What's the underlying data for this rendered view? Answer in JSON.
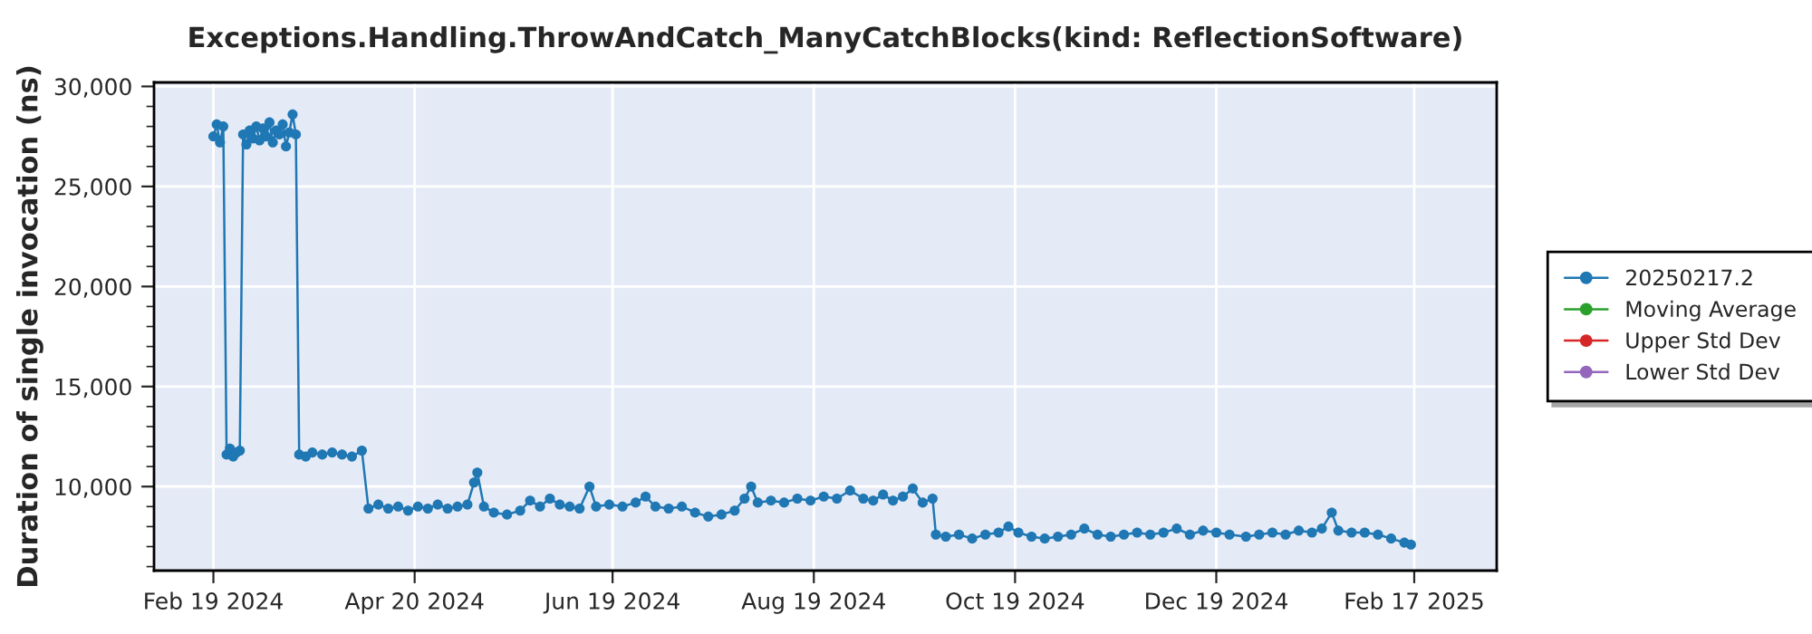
{
  "chart_data": {
    "type": "line",
    "title": "Exceptions.Handling.ThrowAndCatch_ManyCatchBlocks(kind: ReflectionSoftware)",
    "ylabel": "Duration of single invocation (ns)",
    "x": [
      "2024-02-19",
      "2024-02-20",
      "2024-02-21",
      "2024-02-22",
      "2024-02-23",
      "2024-02-24",
      "2024-02-25",
      "2024-02-26",
      "2024-02-27",
      "2024-02-28",
      "2024-02-29",
      "2024-03-01",
      "2024-03-02",
      "2024-03-03",
      "2024-03-04",
      "2024-03-05",
      "2024-03-06",
      "2024-03-07",
      "2024-03-08",
      "2024-03-09",
      "2024-03-10",
      "2024-03-11",
      "2024-03-12",
      "2024-03-13",
      "2024-03-14",
      "2024-03-15",
      "2024-03-16",
      "2024-03-18",
      "2024-03-20",
      "2024-03-23",
      "2024-03-26",
      "2024-03-29",
      "2024-04-01",
      "2024-04-04",
      "2024-04-06",
      "2024-04-09",
      "2024-04-12",
      "2024-04-15",
      "2024-04-18",
      "2024-04-21",
      "2024-04-24",
      "2024-04-27",
      "2024-04-30",
      "2024-05-03",
      "2024-05-06",
      "2024-05-08",
      "2024-05-09",
      "2024-05-11",
      "2024-05-14",
      "2024-05-18",
      "2024-05-22",
      "2024-05-25",
      "2024-05-28",
      "2024-05-31",
      "2024-06-03",
      "2024-06-06",
      "2024-06-09",
      "2024-06-12",
      "2024-06-14",
      "2024-06-18",
      "2024-06-22",
      "2024-06-26",
      "2024-06-29",
      "2024-07-02",
      "2024-07-06",
      "2024-07-10",
      "2024-07-14",
      "2024-07-18",
      "2024-07-22",
      "2024-07-26",
      "2024-07-29",
      "2024-07-31",
      "2024-08-02",
      "2024-08-06",
      "2024-08-10",
      "2024-08-14",
      "2024-08-18",
      "2024-08-22",
      "2024-08-26",
      "2024-08-30",
      "2024-09-03",
      "2024-09-06",
      "2024-09-09",
      "2024-09-12",
      "2024-09-15",
      "2024-09-18",
      "2024-09-21",
      "2024-09-24",
      "2024-09-25",
      "2024-09-28",
      "2024-10-02",
      "2024-10-06",
      "2024-10-10",
      "2024-10-14",
      "2024-10-17",
      "2024-10-20",
      "2024-10-24",
      "2024-10-28",
      "2024-11-01",
      "2024-11-05",
      "2024-11-09",
      "2024-11-13",
      "2024-11-17",
      "2024-11-21",
      "2024-11-25",
      "2024-11-29",
      "2024-12-03",
      "2024-12-07",
      "2024-12-11",
      "2024-12-15",
      "2024-12-19",
      "2024-12-23",
      "2024-12-28",
      "2025-01-01",
      "2025-01-05",
      "2025-01-09",
      "2025-01-13",
      "2025-01-17",
      "2025-01-20",
      "2025-01-23",
      "2025-01-25",
      "2025-01-29",
      "2025-02-02",
      "2025-02-06",
      "2025-02-10",
      "2025-02-14",
      "2025-02-16"
    ],
    "series": [
      {
        "name": "20250217.2",
        "color": "#1f77b4",
        "values": [
          27500,
          28100,
          27200,
          28000,
          11600,
          11900,
          11500,
          11700,
          11800,
          27600,
          27100,
          27800,
          27400,
          28000,
          27300,
          27900,
          27500,
          28200,
          27200,
          27800,
          27600,
          28100,
          27000,
          27700,
          28600,
          27600,
          11600,
          11500,
          11700,
          11600,
          11700,
          11600,
          11500,
          11800,
          8900,
          9100,
          8900,
          9000,
          8800,
          9000,
          8900,
          9100,
          8900,
          9000,
          9100,
          10200,
          10700,
          9000,
          8700,
          8600,
          8800,
          9300,
          9000,
          9400,
          9100,
          9000,
          8900,
          10000,
          9000,
          9100,
          9000,
          9200,
          9500,
          9000,
          8900,
          9000,
          8700,
          8500,
          8600,
          8800,
          9400,
          10000,
          9200,
          9300,
          9200,
          9400,
          9300,
          9500,
          9400,
          9800,
          9400,
          9300,
          9600,
          9300,
          9500,
          9900,
          9200,
          9400,
          7600,
          7500,
          7600,
          7400,
          7600,
          7700,
          8000,
          7700,
          7500,
          7400,
          7500,
          7600,
          7900,
          7600,
          7500,
          7600,
          7700,
          7600,
          7700,
          7900,
          7600,
          7800,
          7700,
          7600,
          7500,
          7600,
          7700,
          7600,
          7800,
          7700,
          7900,
          8700,
          7800,
          7700,
          7700,
          7600,
          7400,
          7200,
          7100
        ]
      },
      {
        "name": "Moving Average",
        "color": "#2ca02c",
        "values": [
          null,
          null,
          null,
          null,
          null,
          null,
          null,
          null,
          null,
          null,
          null,
          null,
          null,
          null,
          null,
          null,
          null,
          null,
          null,
          null,
          null,
          null,
          null,
          null,
          null,
          null,
          null,
          null,
          null,
          null,
          null,
          null,
          null,
          null,
          null,
          null,
          null,
          null,
          null,
          null,
          null,
          null,
          null,
          null,
          null,
          null,
          null,
          null,
          null,
          null,
          null,
          null,
          null,
          null,
          null,
          null,
          null,
          null,
          null,
          null,
          null,
          null,
          null,
          null,
          null,
          null,
          null,
          null,
          null,
          null,
          null,
          null,
          null,
          null,
          null,
          null,
          null,
          null,
          null,
          null,
          null,
          null,
          null,
          null,
          null,
          null,
          null,
          null,
          null,
          null,
          null,
          null,
          null,
          null,
          null,
          null,
          null,
          null,
          null,
          null,
          null,
          null,
          null,
          null,
          null,
          null,
          null,
          null,
          null,
          null,
          null,
          null,
          null,
          null,
          null,
          null,
          null,
          null,
          null,
          null,
          null,
          null,
          null,
          null,
          null,
          null,
          null
        ]
      },
      {
        "name": "Upper Std Dev",
        "color": "#d62728",
        "values": [
          null,
          null,
          null,
          null,
          null,
          null,
          null,
          null,
          null,
          null,
          null,
          null,
          null,
          null,
          null,
          null,
          null,
          null,
          null,
          null,
          null,
          null,
          null,
          null,
          null,
          null,
          null,
          null,
          null,
          null,
          null,
          null,
          null,
          null,
          null,
          null,
          null,
          null,
          null,
          null,
          null,
          null,
          null,
          null,
          null,
          null,
          null,
          null,
          null,
          null,
          null,
          null,
          null,
          null,
          null,
          null,
          null,
          null,
          null,
          null,
          null,
          null,
          null,
          null,
          null,
          null,
          null,
          null,
          null,
          null,
          null,
          null,
          null,
          null,
          null,
          null,
          null,
          null,
          null,
          null,
          null,
          null,
          null,
          null,
          null,
          null,
          null,
          null,
          null,
          null,
          null,
          null,
          null,
          null,
          null,
          null,
          null,
          null,
          null,
          null,
          null,
          null,
          null,
          null,
          null,
          null,
          null,
          null,
          null,
          null,
          null,
          null,
          null,
          null,
          null,
          null,
          null,
          null,
          null,
          null,
          null,
          null,
          null,
          null,
          null,
          null,
          null
        ]
      },
      {
        "name": "Lower Std Dev",
        "color": "#9467bd",
        "values": [
          null,
          null,
          null,
          null,
          null,
          null,
          null,
          null,
          null,
          null,
          null,
          null,
          null,
          null,
          null,
          null,
          null,
          null,
          null,
          null,
          null,
          null,
          null,
          null,
          null,
          null,
          null,
          null,
          null,
          null,
          null,
          null,
          null,
          null,
          null,
          null,
          null,
          null,
          null,
          null,
          null,
          null,
          null,
          null,
          null,
          null,
          null,
          null,
          null,
          null,
          null,
          null,
          null,
          null,
          null,
          null,
          null,
          null,
          null,
          null,
          null,
          null,
          null,
          null,
          null,
          null,
          null,
          null,
          null,
          null,
          null,
          null,
          null,
          null,
          null,
          null,
          null,
          null,
          null,
          null,
          null,
          null,
          null,
          null,
          null,
          null,
          null,
          null,
          null,
          null,
          null,
          null,
          null,
          null,
          null,
          null,
          null,
          null,
          null,
          null,
          null,
          null,
          null,
          null,
          null,
          null,
          null,
          null,
          null,
          null,
          null,
          null,
          null,
          null,
          null,
          null,
          null,
          null,
          null,
          null,
          null,
          null,
          null,
          null,
          null,
          null,
          null
        ]
      }
    ],
    "xlim": [
      "2024-02-01",
      "2025-03-14"
    ],
    "xticks": [
      {
        "value": "2024-02-19",
        "label": "Feb 19 2024"
      },
      {
        "value": "2024-04-20",
        "label": "Apr 20 2024"
      },
      {
        "value": "2024-06-19",
        "label": "Jun 19 2024"
      },
      {
        "value": "2024-08-19",
        "label": "Aug 19 2024"
      },
      {
        "value": "2024-10-19",
        "label": "Oct 19 2024"
      },
      {
        "value": "2024-12-19",
        "label": "Dec 19 2024"
      },
      {
        "value": "2025-02-17",
        "label": "Feb 17 2025"
      }
    ],
    "ylim": [
      5800,
      30200
    ],
    "yticks": [
      {
        "value": 6000,
        "label": null
      },
      {
        "value": 7000,
        "label": null
      },
      {
        "value": 8000,
        "label": null
      },
      {
        "value": 9000,
        "label": null
      },
      {
        "value": 10000,
        "label": "10,000"
      },
      {
        "value": 11000,
        "label": null
      },
      {
        "value": 12000,
        "label": null
      },
      {
        "value": 13000,
        "label": null
      },
      {
        "value": 14000,
        "label": null
      },
      {
        "value": 15000,
        "label": "15,000"
      },
      {
        "value": 16000,
        "label": null
      },
      {
        "value": 17000,
        "label": null
      },
      {
        "value": 18000,
        "label": null
      },
      {
        "value": 19000,
        "label": null
      },
      {
        "value": 20000,
        "label": "20,000"
      },
      {
        "value": 21000,
        "label": null
      },
      {
        "value": 22000,
        "label": null
      },
      {
        "value": 23000,
        "label": null
      },
      {
        "value": 24000,
        "label": null
      },
      {
        "value": 25000,
        "label": "25,000"
      },
      {
        "value": 26000,
        "label": null
      },
      {
        "value": 27000,
        "label": null
      },
      {
        "value": 28000,
        "label": null
      },
      {
        "value": 29000,
        "label": null
      },
      {
        "value": 30000,
        "label": "30,000"
      }
    ],
    "grid": true,
    "legend": "right",
    "marker": "circle",
    "line_style": "solid"
  }
}
